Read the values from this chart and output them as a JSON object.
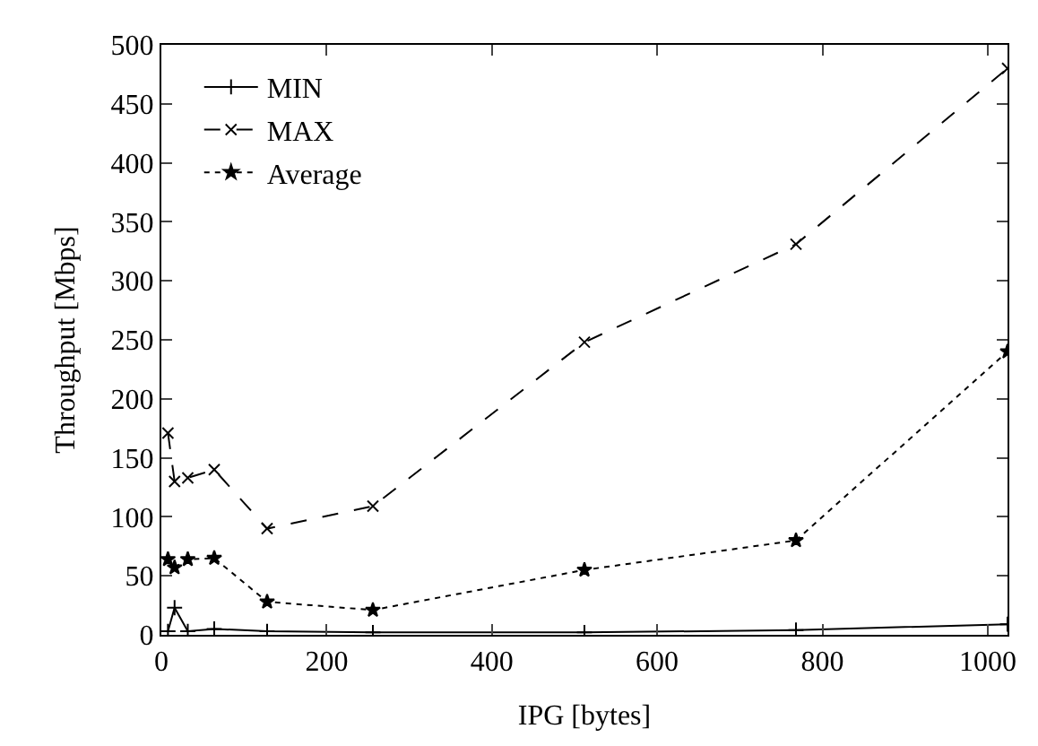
{
  "chart_data": {
    "type": "line",
    "xlabel": "IPG [bytes]",
    "ylabel": "Throughput [Mbps]",
    "x": [
      8,
      16,
      32,
      64,
      128,
      256,
      512,
      768,
      1024
    ],
    "series": [
      {
        "name": "MIN",
        "color": "#000000",
        "line_style": "solid",
        "marker": "cross",
        "values": [
          3,
          23,
          3,
          5,
          3,
          2,
          2,
          4,
          9
        ]
      },
      {
        "name": "MAX",
        "color": "#000000",
        "line_style": "dashed",
        "marker": "x",
        "values": [
          171,
          130,
          133,
          140,
          90,
          109,
          248,
          331,
          480
        ]
      },
      {
        "name": "Average",
        "color": "#000000",
        "line_style": "dotted",
        "marker": "star",
        "values": [
          64,
          57,
          64,
          65,
          28,
          21,
          55,
          80,
          240
        ]
      }
    ],
    "xlim": [
      0,
      1024
    ],
    "xticks": [
      0,
      200,
      400,
      600,
      800,
      1000
    ],
    "ylim": [
      0,
      500
    ],
    "yticks": [
      0,
      50,
      100,
      150,
      200,
      250,
      300,
      350,
      400,
      450,
      500
    ],
    "legend": "top left"
  }
}
